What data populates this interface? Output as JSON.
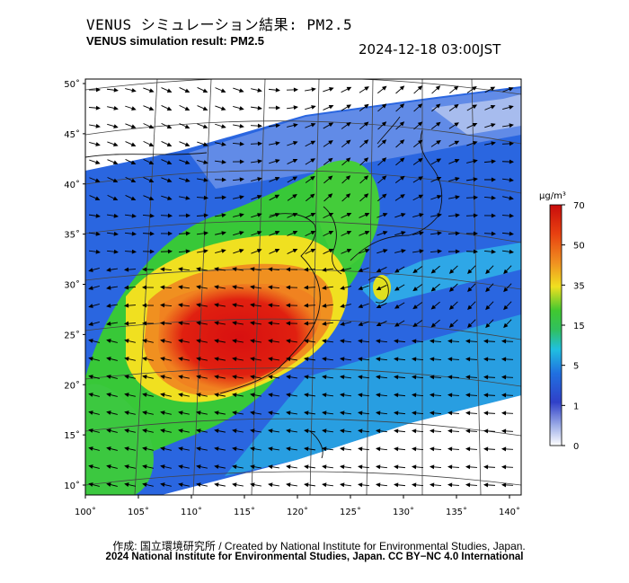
{
  "header": {
    "title_jp": "VENUS シミュレーション結果: PM2.5",
    "title_en": "VENUS simulation result: PM2.5",
    "timestamp": "2024-12-18 03:00JST"
  },
  "map": {
    "lat_labels": [
      "50˚",
      "45˚",
      "40˚",
      "35˚",
      "30˚",
      "25˚",
      "20˚",
      "15˚",
      "10˚"
    ],
    "lon_labels": [
      "100˚",
      "105˚",
      "110˚",
      "115˚",
      "120˚",
      "125˚",
      "130˚",
      "135˚",
      "140˚"
    ],
    "lat_values": [
      50,
      45,
      40,
      35,
      30,
      25,
      20,
      15,
      10
    ],
    "lon_values": [
      100,
      105,
      110,
      115,
      120,
      125,
      130,
      135,
      140
    ]
  },
  "colorbar": {
    "unit": "μg/m³",
    "ticks": [
      "70",
      "50",
      "35",
      "15",
      "5",
      "1",
      "0"
    ],
    "colors": {
      "high": "#d01010",
      "orange": "#f08020",
      "yellow": "#f0e020",
      "green": "#30c030",
      "cyan": "#20c0e0",
      "blue": "#2060e0",
      "low": "#ffffff"
    }
  },
  "footer": {
    "credit_jp": "作成: 国立環境研究所 / Created by National Institute for Environmental Studies, Japan.",
    "copyright": "2024 National Institute for Environmental Studies, Japan. CC BY−NC 4.0 International"
  }
}
